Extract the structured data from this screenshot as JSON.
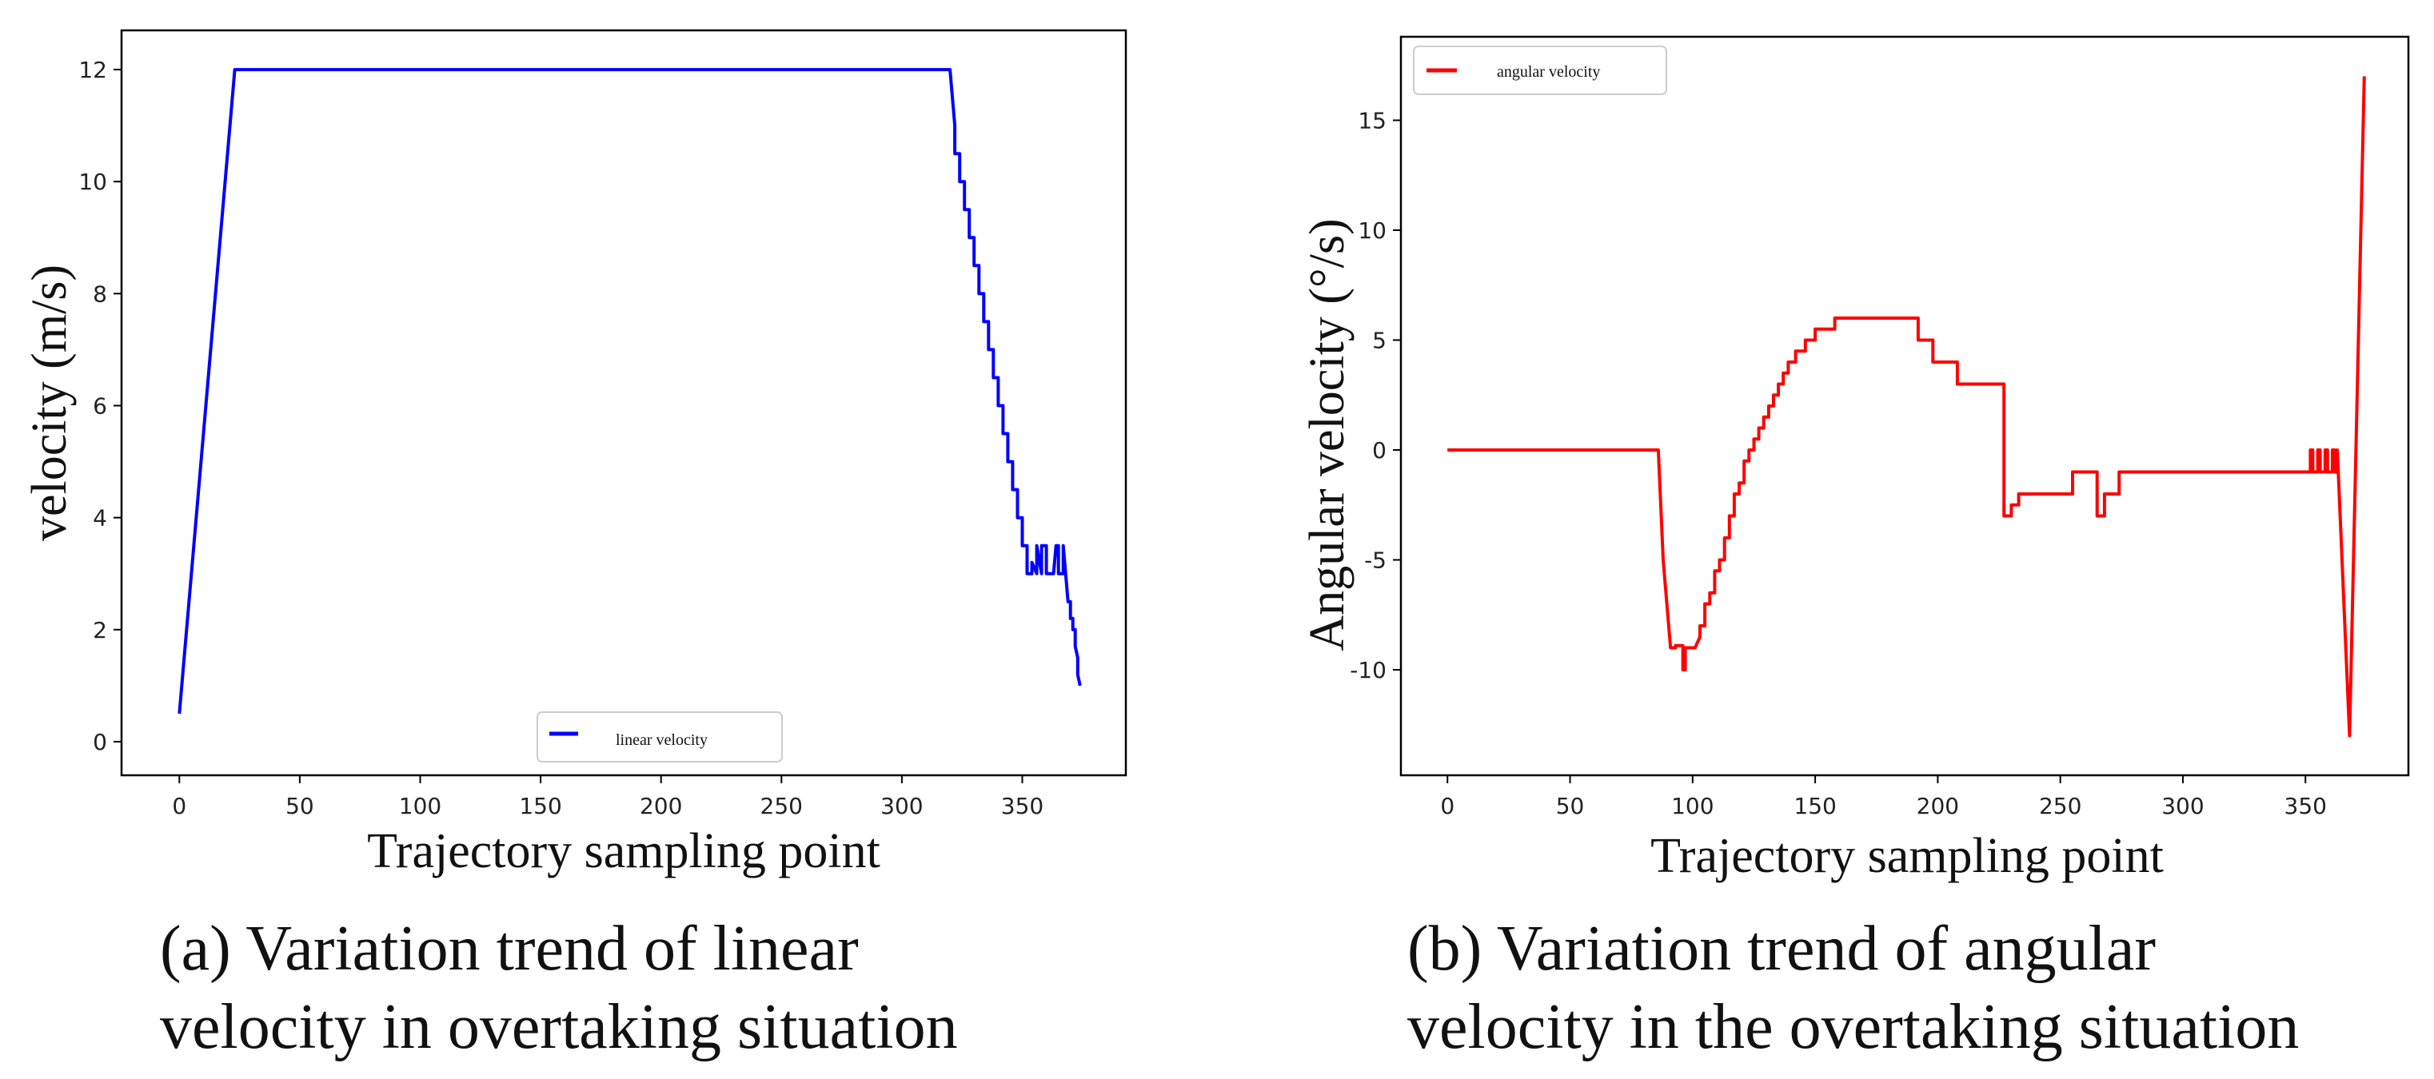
{
  "chart_data": [
    {
      "type": "line",
      "xlabel": "Trajectory  sampling  point",
      "ylabel": "velocity (m/s)",
      "xlim": [
        -24,
        393
      ],
      "ylim": [
        -0.6,
        12.7
      ],
      "xticks": [
        0,
        50,
        100,
        150,
        200,
        250,
        300,
        350
      ],
      "yticks": [
        0,
        2,
        4,
        6,
        8,
        10,
        12
      ],
      "grid": false,
      "legend_position": "bottom-center",
      "caption": [
        "(a) Variation trend of linear",
        "velocity in overtaking situation"
      ],
      "series": [
        {
          "name": "linear velocity",
          "color": "#0000ff",
          "x": [
            0,
            23,
            320,
            322,
            322,
            324,
            324,
            326,
            326,
            328,
            328,
            330,
            330,
            332,
            332,
            334,
            334,
            336,
            336,
            338,
            338,
            340,
            340,
            342,
            342,
            344,
            344,
            346,
            346,
            348,
            348,
            350,
            350,
            352,
            352,
            354,
            354,
            356,
            356,
            358,
            358,
            360,
            360,
            363,
            364,
            365,
            365,
            367,
            367,
            368,
            369,
            370,
            370,
            371,
            371,
            372,
            372,
            373,
            373,
            374
          ],
          "y": [
            0.5,
            12.0,
            12.0,
            11.0,
            10.5,
            10.5,
            10.0,
            10.0,
            9.5,
            9.5,
            9.0,
            9.0,
            8.5,
            8.5,
            8.0,
            8.0,
            7.5,
            7.5,
            7.0,
            7.0,
            6.5,
            6.5,
            6.0,
            6.0,
            5.5,
            5.5,
            5.0,
            5.0,
            4.5,
            4.5,
            4.0,
            4.0,
            3.5,
            3.5,
            3.0,
            3.0,
            3.2,
            3.0,
            3.5,
            3.0,
            3.5,
            3.5,
            3.0,
            3.0,
            3.5,
            3.5,
            3.0,
            3.0,
            3.5,
            3.0,
            2.5,
            2.5,
            2.2,
            2.2,
            2.0,
            2.0,
            1.7,
            1.5,
            1.2,
            1.0
          ]
        }
      ]
    },
    {
      "type": "line",
      "xlabel": "Trajectory  sampling  point",
      "ylabel": "Angular velocity (°/s)",
      "xlim": [
        -19,
        392
      ],
      "ylim": [
        -14.8,
        18.8
      ],
      "xticks": [
        0,
        50,
        100,
        150,
        200,
        250,
        300,
        350
      ],
      "yticks": [
        -10,
        -5,
        0,
        5,
        10,
        15
      ],
      "grid": false,
      "legend_position": "top-left",
      "caption": [
        "(b) Variation trend of angular",
        "velocity in the overtaking situation"
      ],
      "series": [
        {
          "name": "angular velocity",
          "color": "#ff0000",
          "x": [
            0,
            86,
            88,
            91,
            93,
            93,
            96,
            96,
            97,
            97,
            99,
            100,
            101,
            103,
            103,
            105,
            105,
            107,
            107,
            109,
            109,
            111,
            111,
            113,
            113,
            115,
            115,
            117,
            117,
            119,
            119,
            121,
            121,
            123,
            123,
            125,
            125,
            127,
            127,
            129,
            129,
            131,
            131,
            133,
            133,
            135,
            135,
            137,
            137,
            139,
            139,
            142,
            142,
            146,
            146,
            150,
            150,
            158,
            158,
            192,
            192,
            198,
            198,
            208,
            208,
            227,
            227,
            230,
            230,
            233,
            233,
            255,
            255,
            265,
            265,
            268,
            268,
            273,
            273,
            274,
            274,
            294,
            294,
            352,
            352,
            353,
            353,
            355,
            355,
            356,
            356,
            358,
            358,
            359,
            359,
            361,
            361,
            362,
            362,
            363,
            363,
            368,
            374
          ],
          "y": [
            0,
            0,
            -5,
            -9,
            -9,
            -8.9,
            -8.9,
            -10,
            -10,
            -9,
            -9,
            -9,
            -9,
            -8.5,
            -8,
            -8,
            -7,
            -7,
            -6.5,
            -6.5,
            -5.5,
            -5.5,
            -5,
            -5,
            -4,
            -4,
            -3,
            -3,
            -2,
            -2,
            -1.5,
            -1.5,
            -0.5,
            -0.5,
            0,
            0,
            0.5,
            0.5,
            1,
            1,
            1.5,
            1.5,
            2,
            2,
            2.5,
            2.5,
            3,
            3,
            3.5,
            3.5,
            4,
            4,
            4.5,
            4.5,
            5,
            5,
            5.5,
            5.5,
            6,
            6,
            5,
            5,
            4,
            4,
            3,
            3,
            -3,
            -3,
            -2.5,
            -2.5,
            -2,
            -2,
            -1,
            -1,
            -3,
            -3,
            -2,
            -2,
            -2,
            -2,
            -1,
            -1,
            -1,
            -1,
            0,
            0,
            -1,
            -1,
            0,
            0,
            -1,
            -1,
            0,
            0,
            -1,
            -1,
            0,
            0,
            -1,
            -1,
            0,
            -13,
            17
          ]
        }
      ]
    }
  ]
}
